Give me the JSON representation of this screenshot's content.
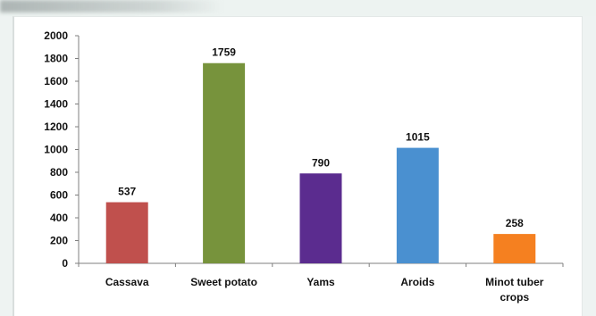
{
  "chart_data": {
    "type": "bar",
    "categories": [
      "Cassava",
      "Sweet potato",
      "Yams",
      "Aroids",
      "Minot tuber crops"
    ],
    "category_lines": [
      [
        "Cassava"
      ],
      [
        "Sweet potato"
      ],
      [
        "Yams"
      ],
      [
        "Aroids"
      ],
      [
        "Minot tuber",
        "crops"
      ]
    ],
    "values": [
      537,
      1759,
      790,
      1015,
      258
    ],
    "data_labels": [
      "537",
      "1759",
      "790",
      "1015",
      "258"
    ],
    "yticks": [
      0,
      200,
      400,
      600,
      800,
      1000,
      1200,
      1400,
      1600,
      1800,
      2000
    ],
    "ylim": [
      0,
      2000
    ],
    "grid": false,
    "legend": "none",
    "colors": [
      "#c0504d",
      "#77933c",
      "#5b2c8f",
      "#4a90d0",
      "#f58020"
    ],
    "title": "",
    "xlabel": "",
    "ylabel": ""
  }
}
